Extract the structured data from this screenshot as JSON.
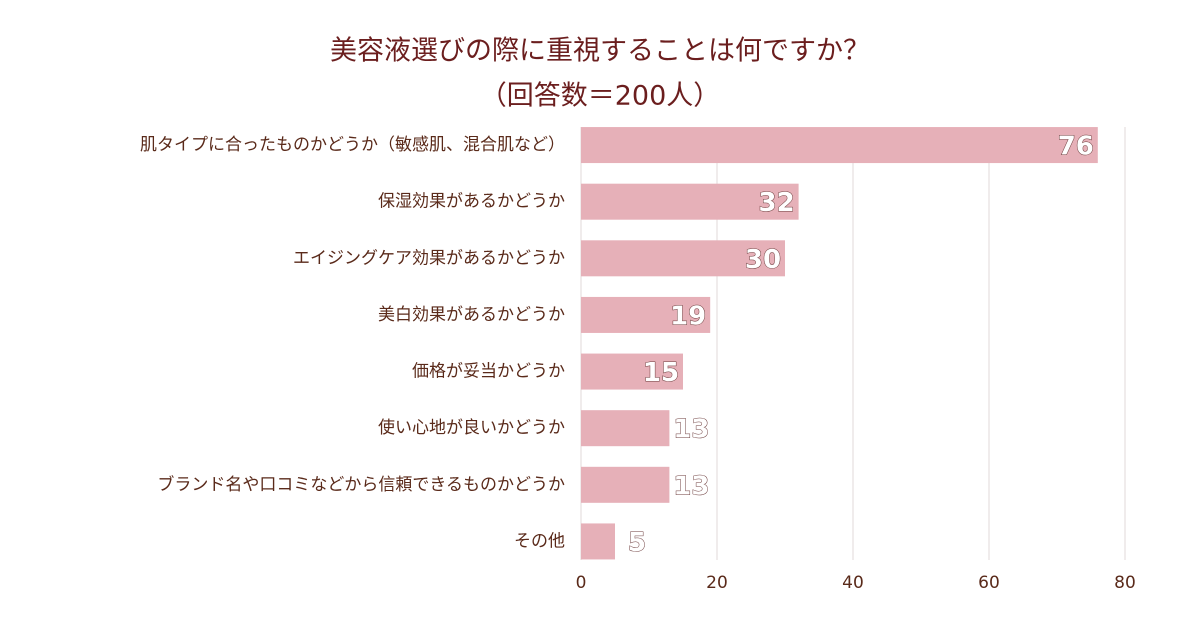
{
  "chart_data": {
    "type": "bar",
    "orientation": "horizontal",
    "title": "美容液選びの際に重視することは何ですか？",
    "subtitle": "（回答数＝200人）",
    "categories": [
      "肌タイプに合ったものかどうか（敏感肌、混合肌など）",
      "保湿効果があるかどうか",
      "エイジングケア効果があるかどうか",
      "美白効果があるかどうか",
      "価格が妥当かどうか",
      "使い心地が良いかどうか",
      "ブランド名や口コミなどから信頼できるものかどうか",
      "その他"
    ],
    "values": [
      76,
      32,
      30,
      19,
      15,
      13,
      13,
      5
    ],
    "color": "#e6b0b8",
    "xlim": [
      0,
      80
    ],
    "xticks": [
      0,
      20,
      40,
      60,
      80
    ],
    "grid": true
  }
}
